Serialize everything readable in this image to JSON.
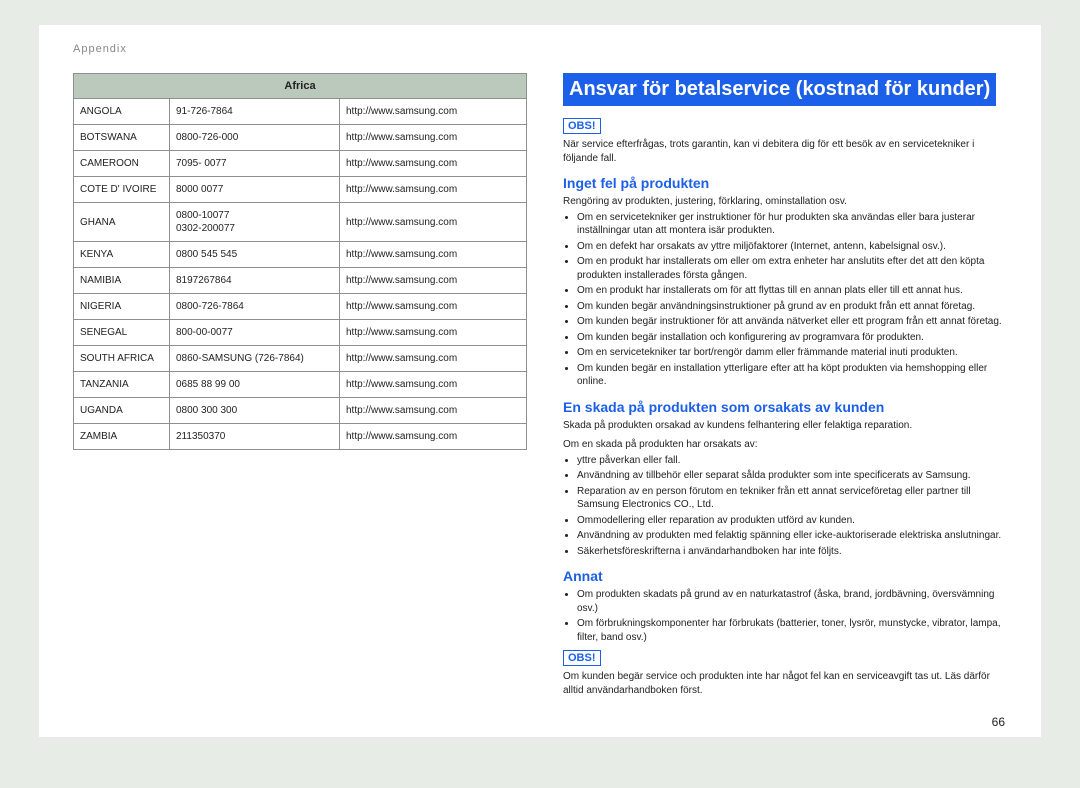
{
  "breadcrumb": "Appendix",
  "pageNumber": "66",
  "table": {
    "header": "Africa",
    "rows": [
      {
        "country": "ANGOLA",
        "phone": "91-726-7864",
        "url": "http://www.samsung.com"
      },
      {
        "country": "BOTSWANA",
        "phone": "0800-726-000",
        "url": "http://www.samsung.com"
      },
      {
        "country": "CAMEROON",
        "phone": "7095- 0077",
        "url": "http://www.samsung.com"
      },
      {
        "country": "COTE D' IVOIRE",
        "phone": "8000 0077",
        "url": "http://www.samsung.com"
      },
      {
        "country": "GHANA",
        "phone": "0800-10077\n0302-200077",
        "url": "http://www.samsung.com"
      },
      {
        "country": "KENYA",
        "phone": "0800 545 545",
        "url": "http://www.samsung.com"
      },
      {
        "country": "NAMIBIA",
        "phone": "8197267864",
        "url": "http://www.samsung.com"
      },
      {
        "country": "NIGERIA",
        "phone": "0800-726-7864",
        "url": "http://www.samsung.com"
      },
      {
        "country": "SENEGAL",
        "phone": "800-00-0077",
        "url": "http://www.samsung.com"
      },
      {
        "country": "SOUTH AFRICA",
        "phone": "0860-SAMSUNG (726-7864)",
        "url": "http://www.samsung.com"
      },
      {
        "country": "TANZANIA",
        "phone": "0685 88 99 00",
        "url": "http://www.samsung.com"
      },
      {
        "country": "UGANDA",
        "phone": "0800 300 300",
        "url": "http://www.samsung.com"
      },
      {
        "country": "ZAMBIA",
        "phone": "211350370",
        "url": "http://www.samsung.com"
      }
    ]
  },
  "right": {
    "title": "Ansvar för betalservice (kostnad för kunder)",
    "obs": "OBS!",
    "intro": "När service efterfrågas, trots garantin, kan vi debitera dig för ett besök av en servicetekniker i följande fall.",
    "sec1": {
      "heading": "Inget fel på produkten",
      "lead": "Rengöring av produkten, justering, förklaring, ominstallation osv.",
      "items": [
        "Om en servicetekniker ger instruktioner för hur produkten ska användas eller bara justerar inställningar utan att montera isär produkten.",
        "Om en defekt har orsakats av yttre miljöfaktorer (Internet, antenn, kabelsignal osv.).",
        "Om en produkt har installerats om eller om extra enheter har anslutits efter det att den köpta produkten installerades första gången.",
        "Om en produkt har installerats om för att flyttas till en annan plats eller till ett annat hus.",
        "Om kunden begär användningsinstruktioner på grund av en produkt från ett annat företag.",
        "Om kunden begär instruktioner för att använda nätverket eller ett program från ett annat företag.",
        "Om kunden begär installation och konfigurering av programvara för produkten.",
        "Om en servicetekniker tar bort/rengör damm eller främmande material inuti produkten.",
        "Om kunden begär en installation ytterligare efter att ha köpt produkten via hemshopping eller online."
      ]
    },
    "sec2": {
      "heading": "En skada på produkten som orsakats av kunden",
      "lead1": "Skada på produkten orsakad av kundens felhantering eller felaktiga reparation.",
      "lead2": "Om en skada på produkten har orsakats av:",
      "items": [
        "yttre påverkan eller fall.",
        "Användning av tillbehör eller separat sålda produkter som inte specificerats av Samsung.",
        "Reparation av en person förutom en tekniker från ett annat serviceföretag eller partner till Samsung Electronics CO., Ltd.",
        "Ommodellering eller reparation av produkten utförd av kunden.",
        "Användning av produkten med felaktig spänning eller icke-auktoriserade elektriska anslutningar.",
        "Säkerhetsföreskrifterna i användarhandboken har inte följts."
      ]
    },
    "sec3": {
      "heading": "Annat",
      "items": [
        "Om produkten skadats på grund av en naturkatastrof (åska, brand, jordbävning, översvämning osv.)",
        "Om förbrukningskomponenter har förbrukats (batterier, toner, lysrör, munstycke, vibrator, lampa, filter, band osv.)"
      ]
    },
    "outro": "Om kunden begär service och produkten inte har något fel kan en serviceavgift tas ut. Läs därför alltid användarhandboken först."
  }
}
